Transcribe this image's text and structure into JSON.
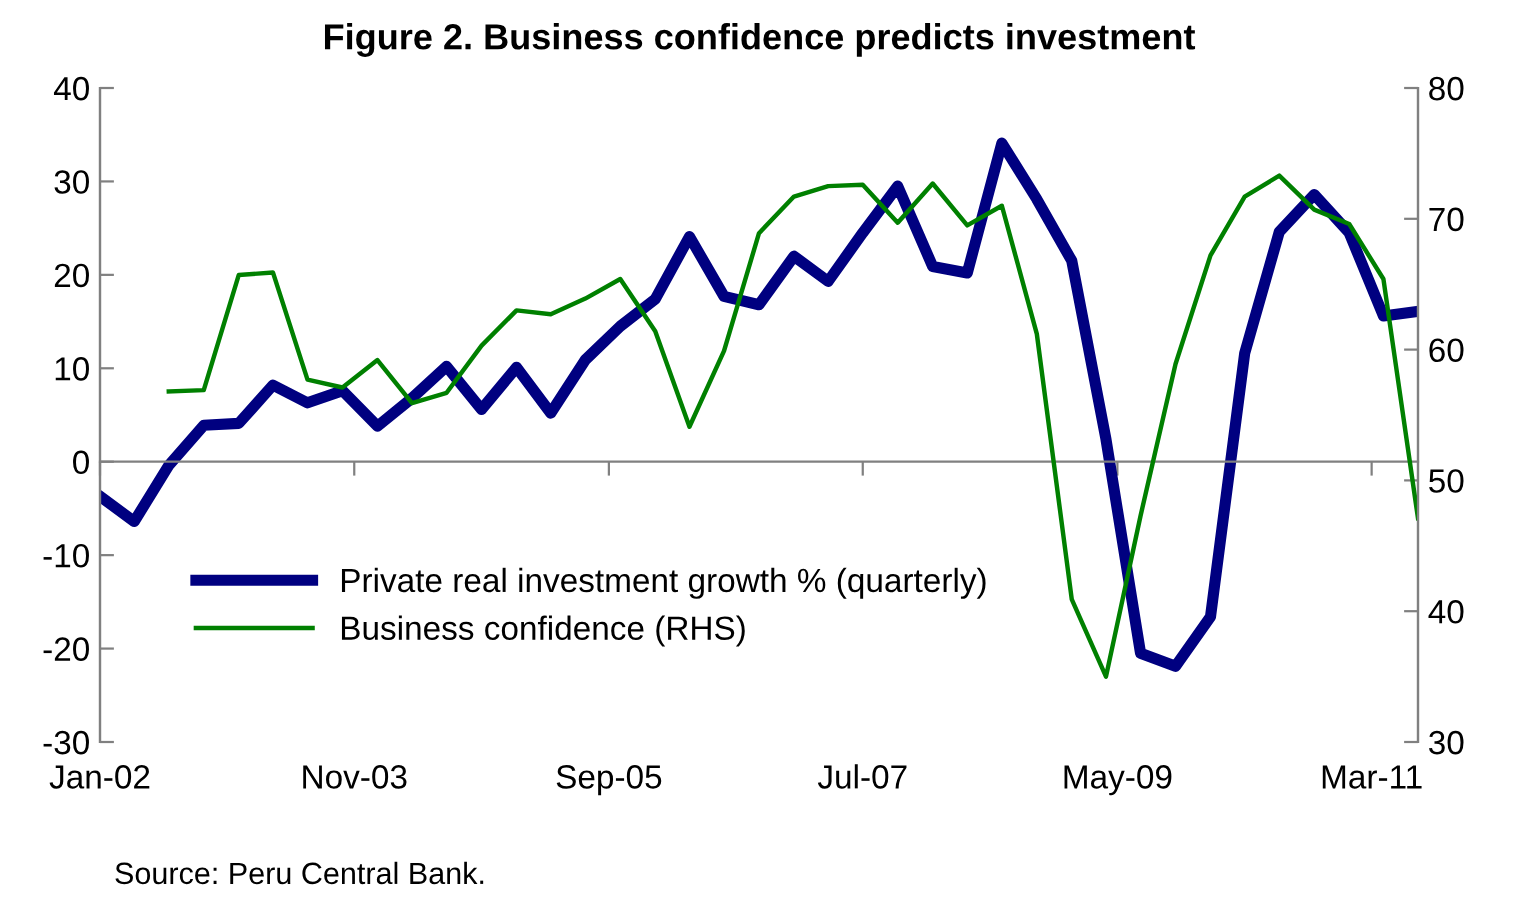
{
  "chart_data": {
    "type": "line",
    "title": "Figure 2. Business confidence predicts investment",
    "x": [
      "2002-01",
      "2002-04",
      "2002-07",
      "2002-10",
      "2003-01",
      "2003-04",
      "2003-07",
      "2003-10",
      "2004-01",
      "2004-04",
      "2004-07",
      "2004-10",
      "2005-01",
      "2005-04",
      "2005-07",
      "2005-10",
      "2006-01",
      "2006-04",
      "2006-07",
      "2006-10",
      "2007-01",
      "2007-04",
      "2007-07",
      "2007-10",
      "2008-01",
      "2008-04",
      "2008-07",
      "2008-10",
      "2009-01",
      "2009-04",
      "2009-07",
      "2009-10",
      "2010-01",
      "2010-04",
      "2010-07",
      "2010-10",
      "2011-01",
      "2011-04",
      "2011-07"
    ],
    "series": [
      {
        "name": "Private real investment growth % (quarterly)",
        "color": "#000080",
        "axis": "y",
        "values": [
          -3.7,
          -6.4,
          -0.4,
          3.9,
          4.1,
          8.2,
          6.3,
          7.6,
          3.8,
          6.8,
          10.2,
          5.6,
          10.1,
          5.2,
          10.9,
          14.5,
          17.4,
          24.1,
          17.7,
          16.8,
          22.0,
          19.3,
          24.5,
          29.5,
          20.9,
          20.2,
          34.1,
          28.1,
          21.5,
          2.4,
          -20.5,
          -21.9,
          -16.6,
          11.6,
          24.6,
          28.6,
          24.5,
          15.6,
          16.1
        ]
      },
      {
        "name": "Business confidence (RHS)",
        "color": "#008000",
        "axis": "y2",
        "values": [
          null,
          null,
          56.8,
          56.9,
          65.7,
          65.9,
          57.7,
          57.1,
          59.2,
          55.9,
          56.7,
          60.3,
          63.0,
          62.7,
          63.9,
          65.4,
          61.4,
          54.1,
          59.9,
          68.9,
          71.7,
          72.5,
          72.6,
          69.7,
          72.7,
          69.5,
          71.0,
          61.2,
          40.9,
          35.0,
          47.3,
          58.9,
          67.2,
          71.7,
          73.3,
          70.7,
          69.6,
          65.4,
          47.1
        ]
      }
    ],
    "xlim": [
      "2002-01",
      "2011-07"
    ],
    "xticks": [
      {
        "value": "2002-01",
        "label": "Jan-02"
      },
      {
        "value": "2003-11",
        "label": "Nov-03"
      },
      {
        "value": "2005-09",
        "label": "Sep-05"
      },
      {
        "value": "2007-07",
        "label": "Jul-07"
      },
      {
        "value": "2009-05",
        "label": "May-09"
      },
      {
        "value": "2011-03",
        "label": "Mar-11"
      }
    ],
    "ylim": [
      -30,
      40
    ],
    "yticks": [
      -30,
      -20,
      -10,
      0,
      10,
      20,
      30,
      40
    ],
    "y2lim": [
      30,
      80
    ],
    "y2ticks": [
      30,
      40,
      50,
      60,
      70,
      80
    ],
    "legend": "bottom left",
    "annotations": [
      "Source: Peru Central Bank."
    ]
  }
}
